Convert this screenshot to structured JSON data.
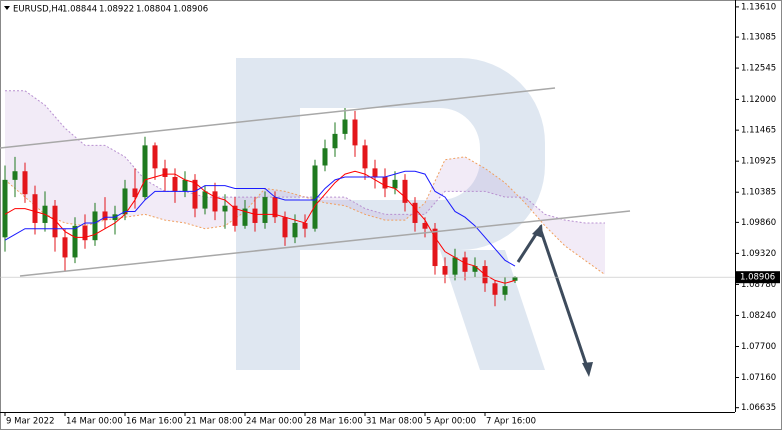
{
  "chart_data": {
    "type": "candlestick",
    "title": "EURUSD,H4",
    "up_color": "#1f7a1f",
    "down_color": "#e3161b",
    "xlim": [
      -0.5,
      73
    ],
    "ylim": [
      1.0656,
      1.1373
    ],
    "xticks": [
      {
        "value": 0,
        "label": "9 Mar 2022"
      },
      {
        "value": 6,
        "label": "14 Mar 00:00"
      },
      {
        "value": 12,
        "label": "16 Mar 16:00"
      },
      {
        "value": 18,
        "label": "21 Mar 08:00"
      },
      {
        "value": 24,
        "label": "24 Mar 00:00"
      },
      {
        "value": 30,
        "label": "28 Mar 16:00"
      },
      {
        "value": 36,
        "label": "31 Mar 08:00"
      },
      {
        "value": 42,
        "label": "5 Apr 00:00"
      },
      {
        "value": 48,
        "label": "7 Apr 16:00"
      }
    ],
    "yticks": [
      {
        "value": 1.1361,
        "label": "1.13610"
      },
      1.13085,
      1.12545,
      {
        "value": 1.12,
        "label": "1.12000"
      },
      1.11465,
      1.10925,
      1.10385,
      {
        "value": 1.0986,
        "label": "1.09860"
      },
      {
        "value": 1.0932,
        "label": "1.09320"
      },
      {
        "value": 1.0878,
        "label": "1.08780"
      },
      {
        "value": 1.0824,
        "label": "1.08240"
      },
      {
        "value": 1.077,
        "label": "1.07700"
      },
      {
        "value": 1.0716,
        "label": "1.07160"
      },
      1.06635
    ],
    "open": [
      1.096,
      1.106,
      1.1075,
      1.1035,
      1.0985,
      1.1015,
      1.096,
      1.0925,
      1.098,
      1.0955,
      1.1005,
      1.099,
      1.1,
      1.1045,
      1.103,
      1.112,
      1.108,
      1.1065,
      1.104,
      1.106,
      1.101,
      1.104,
      1.1005,
      1.1015,
      1.098,
      1.101,
      1.0985,
      1.103,
      1.0995,
      1.096,
      1.0985,
      1.0975,
      1.1085,
      1.1115,
      1.114,
      1.1165,
      1.112,
      1.108,
      1.1065,
      1.1045,
      1.106,
      1.102,
      1.0985,
      1.0975,
      1.091,
      1.0895,
      1.0925,
      1.09,
      1.091,
      1.088,
      1.086,
      1.08844
    ],
    "high": [
      1.1085,
      1.11,
      1.109,
      1.105,
      1.104,
      1.1025,
      1.0975,
      1.0995,
      1.1,
      1.102,
      1.103,
      1.1015,
      1.106,
      1.108,
      1.1135,
      1.1125,
      1.1095,
      1.108,
      1.1075,
      1.107,
      1.105,
      1.1055,
      1.1035,
      1.103,
      1.1025,
      1.103,
      1.104,
      1.104,
      1.1005,
      1.1,
      1.1,
      1.1095,
      1.113,
      1.116,
      1.1185,
      1.118,
      1.113,
      1.1095,
      1.108,
      1.1075,
      1.107,
      1.103,
      1.0995,
      1.0985,
      1.0925,
      1.094,
      1.0935,
      1.0925,
      1.092,
      1.0885,
      1.089,
      1.08922
    ],
    "low": [
      1.0935,
      1.103,
      1.102,
      1.0965,
      1.097,
      1.0935,
      1.09,
      1.0915,
      1.094,
      1.0945,
      1.0975,
      1.0965,
      1.099,
      1.101,
      1.1025,
      1.106,
      1.104,
      1.102,
      1.103,
      1.0995,
      1.1,
      1.099,
      1.0975,
      1.097,
      1.0975,
      1.097,
      1.0975,
      1.0985,
      1.0945,
      1.095,
      1.096,
      1.097,
      1.1075,
      1.11,
      1.113,
      1.11,
      1.106,
      1.1045,
      1.103,
      1.1035,
      1.1005,
      1.097,
      1.096,
      1.0895,
      1.088,
      1.0885,
      1.0885,
      1.089,
      1.0865,
      1.084,
      1.085,
      1.08804
    ],
    "close": [
      1.106,
      1.1075,
      1.1035,
      1.0985,
      1.1015,
      1.096,
      1.0925,
      1.098,
      1.0955,
      1.1005,
      1.099,
      1.1,
      1.1045,
      1.103,
      1.112,
      1.108,
      1.1065,
      1.104,
      1.106,
      1.101,
      1.104,
      1.1005,
      1.1015,
      1.098,
      1.101,
      1.0985,
      1.103,
      1.0995,
      1.096,
      1.0985,
      1.0975,
      1.1085,
      1.1115,
      1.114,
      1.1165,
      1.112,
      1.108,
      1.1065,
      1.1045,
      1.106,
      1.102,
      1.0985,
      1.0975,
      1.091,
      1.0895,
      1.0925,
      1.09,
      1.091,
      1.088,
      1.086,
      1.0875,
      1.08906
    ],
    "lines": [
      {
        "color": "#ff0000",
        "values": [
          1.1,
          1.101,
          1.101,
          1.1005,
          1.1,
          1.099,
          1.097,
          1.096,
          1.096,
          1.0965,
          1.0975,
          1.0985,
          1.1,
          1.1025,
          1.106,
          1.1065,
          1.107,
          1.107,
          1.106,
          1.1055,
          1.104,
          1.103,
          1.1025,
          1.101,
          1.1005,
          1.1,
          1.1,
          1.1,
          1.0995,
          1.099,
          1.0985,
          1.1015,
          1.1035,
          1.1055,
          1.107,
          1.1075,
          1.107,
          1.106,
          1.105,
          1.1045,
          1.103,
          1.101,
          1.099,
          1.096,
          1.0935,
          1.0925,
          1.0915,
          1.091,
          1.0895,
          1.0885,
          1.088,
          1.0885
        ]
      },
      {
        "color": "#1a1aff",
        "values": [
          1.0955,
          1.0965,
          1.0975,
          1.0975,
          1.0975,
          1.0975,
          1.0975,
          1.0975,
          1.0985,
          1.0985,
          1.0995,
          1.0995,
          1.1005,
          1.1005,
          1.1025,
          1.104,
          1.104,
          1.104,
          1.104,
          1.104,
          1.105,
          1.105,
          1.105,
          1.1045,
          1.1045,
          1.1045,
          1.1045,
          1.103,
          1.1025,
          1.1025,
          1.1025,
          1.1025,
          1.1045,
          1.106,
          1.1065,
          1.1065,
          1.1065,
          1.1065,
          1.1065,
          1.107,
          1.1075,
          1.1075,
          1.107,
          1.104,
          1.103,
          1.1005,
          1.0995,
          1.098,
          1.096,
          1.094,
          1.092,
          1.091
        ]
      }
    ],
    "cloud": {
      "color_a": "#f0a060",
      "color_b": "#b890d0",
      "x": [
        0,
        2,
        4,
        6,
        8,
        10,
        12,
        14,
        16,
        18,
        20,
        22,
        24,
        26,
        28,
        30,
        32,
        34,
        36,
        38,
        40,
        42,
        44,
        46,
        48,
        50,
        52,
        54,
        56,
        58,
        60
      ],
      "span_a": [
        1.106,
        1.103,
        1.1,
        1.0985,
        1.098,
        1.099,
        1.0995,
        1.1,
        1.099,
        1.0985,
        1.0975,
        1.098,
        1.1005,
        1.1045,
        1.104,
        1.103,
        1.102,
        1.1015,
        1.1,
        1.099,
        1.099,
        1.102,
        1.1095,
        1.11,
        1.108,
        1.1055,
        1.102,
        1.098,
        1.0945,
        1.092,
        1.0895
      ],
      "span_b": [
        1.1215,
        1.1215,
        1.119,
        1.115,
        1.112,
        1.112,
        1.11,
        1.106,
        1.104,
        1.104,
        1.103,
        1.103,
        1.103,
        1.103,
        1.103,
        1.103,
        1.103,
        1.103,
        1.101,
        1.1,
        1.1,
        1.1,
        1.104,
        1.104,
        1.104,
        1.103,
        1.103,
        1.1,
        1.099,
        1.0985,
        1.0985
      ]
    }
  }
}
